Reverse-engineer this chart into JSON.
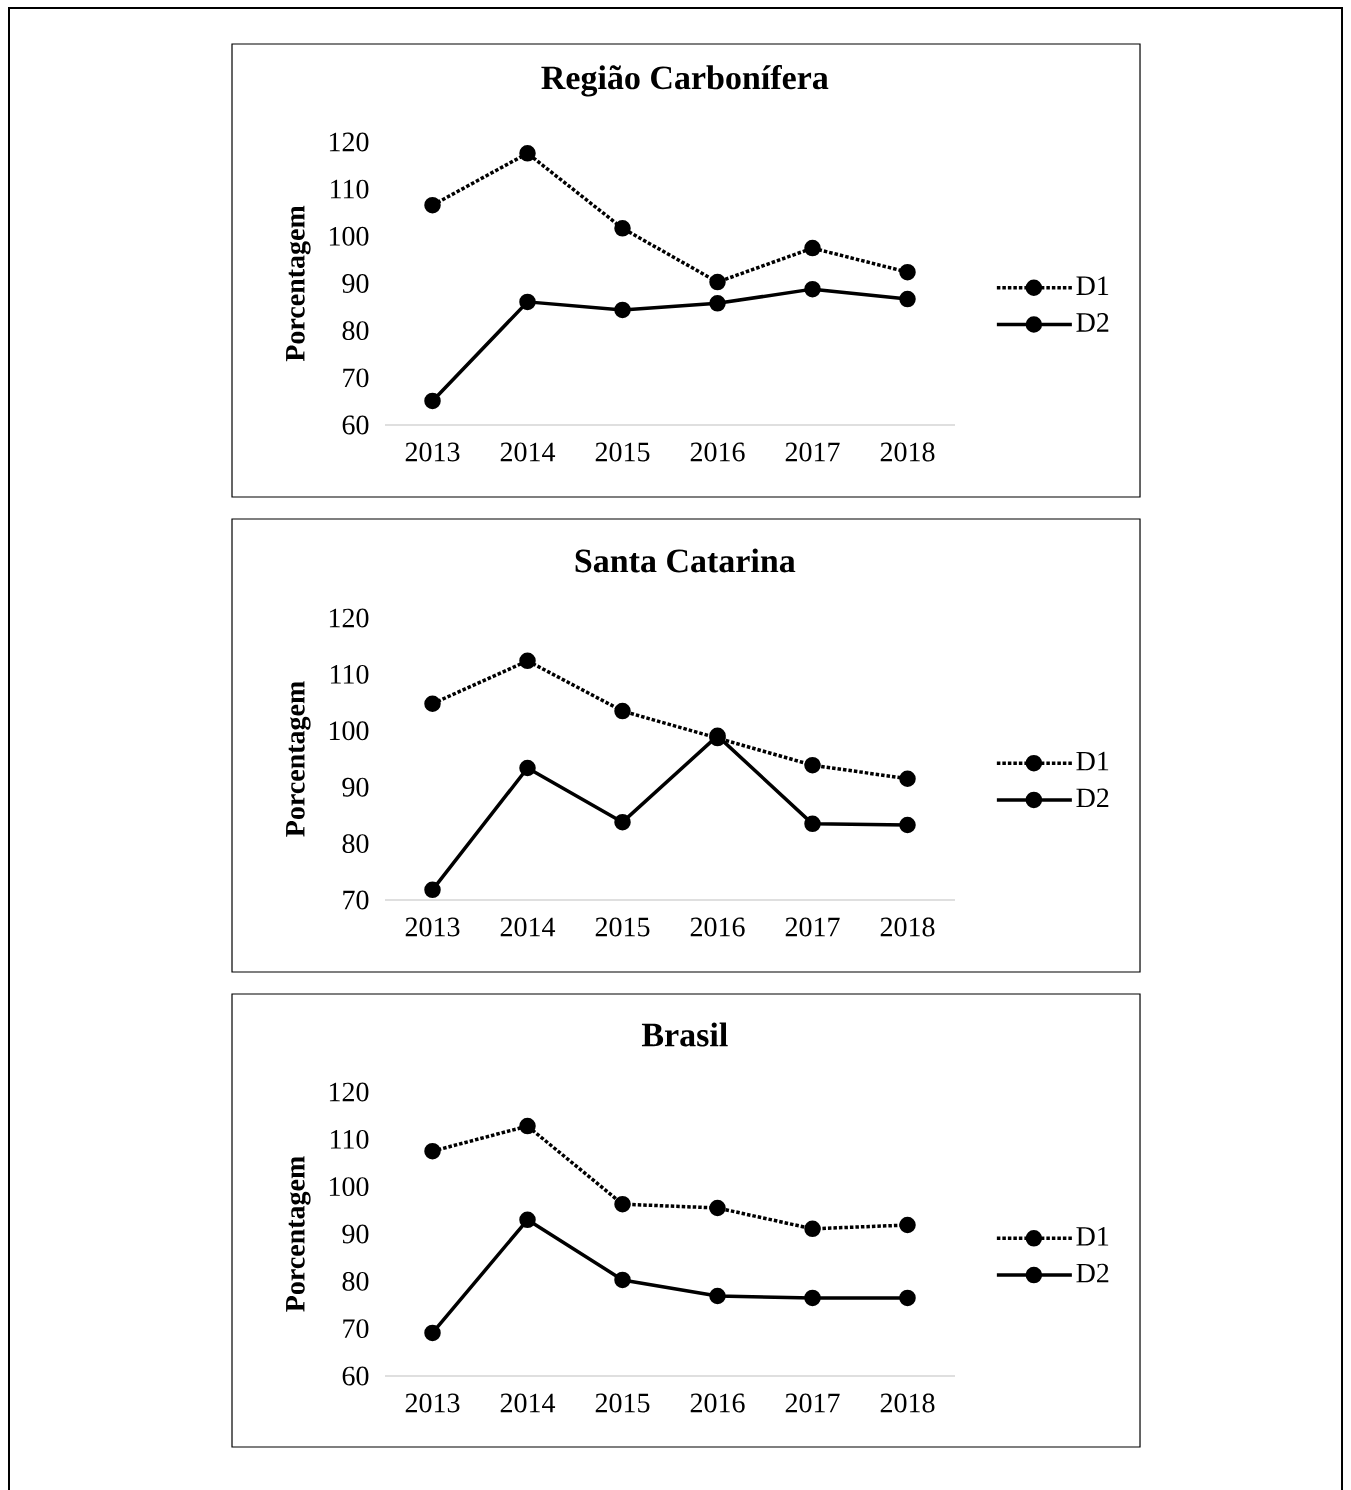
{
  "chart_data": [
    {
      "type": "line",
      "title": "Região Carbonífera",
      "ylabel": "Porcentagem",
      "categories": [
        "2013",
        "2014",
        "2015",
        "2016",
        "2017",
        "2018"
      ],
      "ylim": [
        60,
        120
      ],
      "yticks": [
        60,
        70,
        80,
        90,
        100,
        110,
        120
      ],
      "legend": "right",
      "grid": false,
      "marker": "circle",
      "series": [
        {
          "name": "D1",
          "color": "#000000",
          "line_style": "dotted",
          "values": [
            106.6,
            117.6,
            101.7,
            90.3,
            97.5,
            92.4
          ]
        },
        {
          "name": "D2",
          "color": "#000000",
          "line_style": "solid",
          "values": [
            65.1,
            86.1,
            84.4,
            85.8,
            88.8,
            86.7
          ]
        }
      ]
    },
    {
      "type": "line",
      "title": "Santa Catarina",
      "ylabel": "Porcentagem",
      "categories": [
        "2013",
        "2014",
        "2015",
        "2016",
        "2017",
        "2018"
      ],
      "ylim": [
        70,
        120
      ],
      "yticks": [
        70,
        80,
        90,
        100,
        110,
        120
      ],
      "legend": "right",
      "grid": false,
      "marker": "circle",
      "series": [
        {
          "name": "D1",
          "color": "#000000",
          "line_style": "dotted",
          "values": [
            104.8,
            112.4,
            103.5,
            98.7,
            93.9,
            91.5
          ]
        },
        {
          "name": "D2",
          "color": "#000000",
          "line_style": "solid",
          "values": [
            71.8,
            93.4,
            83.8,
            99.1,
            83.5,
            83.3
          ]
        }
      ]
    },
    {
      "type": "line",
      "title": "Brasil",
      "ylabel": "Porcentagem",
      "categories": [
        "2013",
        "2014",
        "2015",
        "2016",
        "2017",
        "2018"
      ],
      "ylim": [
        60,
        120
      ],
      "yticks": [
        60,
        70,
        80,
        90,
        100,
        110,
        120
      ],
      "legend": "right",
      "grid": false,
      "marker": "circle",
      "series": [
        {
          "name": "D1",
          "color": "#000000",
          "line_style": "dotted",
          "values": [
            107.5,
            112.8,
            96.3,
            95.5,
            91.1,
            91.9
          ]
        },
        {
          "name": "D2",
          "color": "#000000",
          "line_style": "solid",
          "values": [
            69.1,
            93.0,
            80.3,
            76.9,
            76.5,
            76.5
          ]
        }
      ]
    }
  ]
}
